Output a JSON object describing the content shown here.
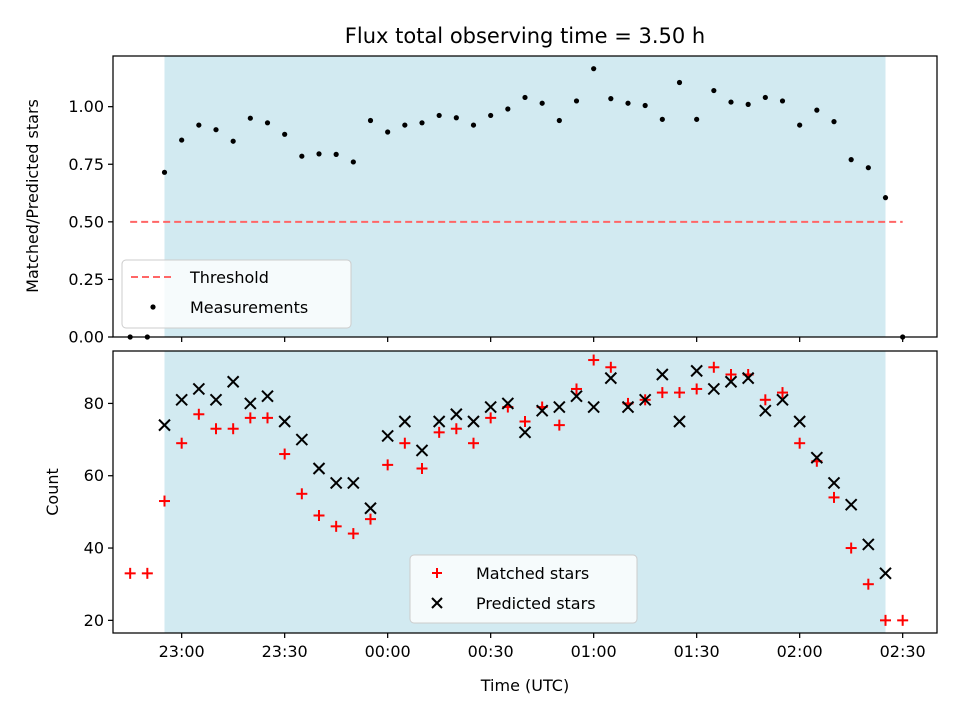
{
  "chart_data": [
    {
      "type": "scatter",
      "title": "Flux total observing time = 3.50 h",
      "xlabel": "",
      "ylabel": "Matched/Predicted stars",
      "xlim": [
        "22:40",
        "02:40"
      ],
      "ylim": [
        0.0,
        1.22
      ],
      "yticks": [
        "0.00",
        "0.25",
        "0.50",
        "0.75",
        "1.00"
      ],
      "shaded_span": [
        "22:55",
        "02:25"
      ],
      "shade_color": "#add8e6",
      "threshold": {
        "name": "Threshold",
        "value": 0.5,
        "x_start": "22:45",
        "x_end": "02:30",
        "color": "#ff6666"
      },
      "series": [
        {
          "name": "Measurements",
          "color": "#000000",
          "points": [
            [
              "22:45",
              0.0
            ],
            [
              "22:50",
              0.0
            ],
            [
              "22:55",
              0.715
            ],
            [
              "23:00",
              0.855
            ],
            [
              "23:05",
              0.92
            ],
            [
              "23:10",
              0.9
            ],
            [
              "23:15",
              0.85
            ],
            [
              "23:20",
              0.95
            ],
            [
              "23:25",
              0.93
            ],
            [
              "23:30",
              0.88
            ],
            [
              "23:35",
              0.785
            ],
            [
              "23:40",
              0.795
            ],
            [
              "23:45",
              0.793
            ],
            [
              "23:50",
              0.76
            ],
            [
              "23:55",
              0.94
            ],
            [
              "00:00",
              0.89
            ],
            [
              "00:05",
              0.92
            ],
            [
              "00:10",
              0.93
            ],
            [
              "00:15",
              0.962
            ],
            [
              "00:20",
              0.952
            ],
            [
              "00:25",
              0.92
            ],
            [
              "00:30",
              0.962
            ],
            [
              "00:35",
              0.99
            ],
            [
              "00:40",
              1.04
            ],
            [
              "00:45",
              1.015
            ],
            [
              "00:50",
              0.94
            ],
            [
              "00:55",
              1.025
            ],
            [
              "01:00",
              1.165
            ],
            [
              "01:05",
              1.035
            ],
            [
              "01:10",
              1.015
            ],
            [
              "01:15",
              1.005
            ],
            [
              "01:20",
              0.945
            ],
            [
              "01:25",
              1.105
            ],
            [
              "01:30",
              0.945
            ],
            [
              "01:35",
              1.07
            ],
            [
              "01:40",
              1.02
            ],
            [
              "01:45",
              1.01
            ],
            [
              "01:50",
              1.04
            ],
            [
              "01:55",
              1.025
            ],
            [
              "02:00",
              0.92
            ],
            [
              "02:05",
              0.985
            ],
            [
              "02:10",
              0.935
            ],
            [
              "02:15",
              0.77
            ],
            [
              "02:20",
              0.735
            ],
            [
              "02:25",
              0.605
            ],
            [
              "02:30",
              0.0
            ]
          ]
        }
      ],
      "legend": {
        "placement": "lower-left",
        "entries": [
          "Threshold",
          "Measurements"
        ]
      }
    },
    {
      "type": "scatter",
      "title": "",
      "xlabel": "Time (UTC)",
      "ylabel": "Count",
      "xlim": [
        "22:40",
        "02:40"
      ],
      "ylim": [
        16.5,
        94.5
      ],
      "yticks": [
        "20",
        "40",
        "60",
        "80"
      ],
      "xticks": [
        "23:00",
        "23:30",
        "00:00",
        "00:30",
        "01:00",
        "01:30",
        "02:00",
        "02:30"
      ],
      "shaded_span": [
        "22:55",
        "02:25"
      ],
      "shade_color": "#add8e6",
      "series": [
        {
          "name": "Matched stars",
          "marker": "plus",
          "color": "#ff0000",
          "points": [
            [
              "22:45",
              33
            ],
            [
              "22:50",
              33
            ],
            [
              "22:55",
              53
            ],
            [
              "23:00",
              69
            ],
            [
              "23:05",
              77
            ],
            [
              "23:10",
              73
            ],
            [
              "23:15",
              73
            ],
            [
              "23:20",
              76
            ],
            [
              "23:25",
              76
            ],
            [
              "23:30",
              66
            ],
            [
              "23:35",
              55
            ],
            [
              "23:40",
              49
            ],
            [
              "23:45",
              46
            ],
            [
              "23:50",
              44
            ],
            [
              "23:55",
              48
            ],
            [
              "00:00",
              63
            ],
            [
              "00:05",
              69
            ],
            [
              "00:10",
              62
            ],
            [
              "00:15",
              72
            ],
            [
              "00:20",
              73
            ],
            [
              "00:25",
              69
            ],
            [
              "00:30",
              76
            ],
            [
              "00:35",
              79
            ],
            [
              "00:40",
              75
            ],
            [
              "00:45",
              79
            ],
            [
              "00:50",
              74
            ],
            [
              "00:55",
              84
            ],
            [
              "01:00",
              92
            ],
            [
              "01:05",
              90
            ],
            [
              "01:10",
              80
            ],
            [
              "01:15",
              81
            ],
            [
              "01:20",
              83
            ],
            [
              "01:25",
              83
            ],
            [
              "01:30",
              84
            ],
            [
              "01:35",
              90
            ],
            [
              "01:40",
              88
            ],
            [
              "01:45",
              88
            ],
            [
              "01:50",
              81
            ],
            [
              "01:55",
              83
            ],
            [
              "02:00",
              69
            ],
            [
              "02:05",
              64
            ],
            [
              "02:10",
              54
            ],
            [
              "02:15",
              40
            ],
            [
              "02:20",
              30
            ],
            [
              "02:25",
              20
            ],
            [
              "02:30",
              20
            ]
          ]
        },
        {
          "name": "Predicted stars",
          "marker": "x",
          "color": "#000000",
          "points": [
            [
              "22:55",
              74
            ],
            [
              "23:00",
              81
            ],
            [
              "23:05",
              84
            ],
            [
              "23:10",
              81
            ],
            [
              "23:15",
              86
            ],
            [
              "23:20",
              80
            ],
            [
              "23:25",
              82
            ],
            [
              "23:30",
              75
            ],
            [
              "23:35",
              70
            ],
            [
              "23:40",
              62
            ],
            [
              "23:45",
              58
            ],
            [
              "23:50",
              58
            ],
            [
              "23:55",
              51
            ],
            [
              "00:00",
              71
            ],
            [
              "00:05",
              75
            ],
            [
              "00:10",
              67
            ],
            [
              "00:15",
              75
            ],
            [
              "00:20",
              77
            ],
            [
              "00:25",
              75
            ],
            [
              "00:30",
              79
            ],
            [
              "00:35",
              80
            ],
            [
              "00:40",
              72
            ],
            [
              "00:45",
              78
            ],
            [
              "00:50",
              79
            ],
            [
              "00:55",
              82
            ],
            [
              "01:00",
              79
            ],
            [
              "01:05",
              87
            ],
            [
              "01:10",
              79
            ],
            [
              "01:15",
              81
            ],
            [
              "01:20",
              88
            ],
            [
              "01:25",
              75
            ],
            [
              "01:30",
              89
            ],
            [
              "01:35",
              84
            ],
            [
              "01:40",
              86
            ],
            [
              "01:45",
              87
            ],
            [
              "01:50",
              78
            ],
            [
              "01:55",
              81
            ],
            [
              "02:00",
              75
            ],
            [
              "02:05",
              65
            ],
            [
              "02:10",
              58
            ],
            [
              "02:15",
              52
            ],
            [
              "02:20",
              41
            ],
            [
              "02:25",
              33
            ]
          ]
        }
      ],
      "legend": {
        "placement": "lower-center",
        "entries": [
          "Matched stars",
          "Predicted stars"
        ]
      }
    }
  ]
}
